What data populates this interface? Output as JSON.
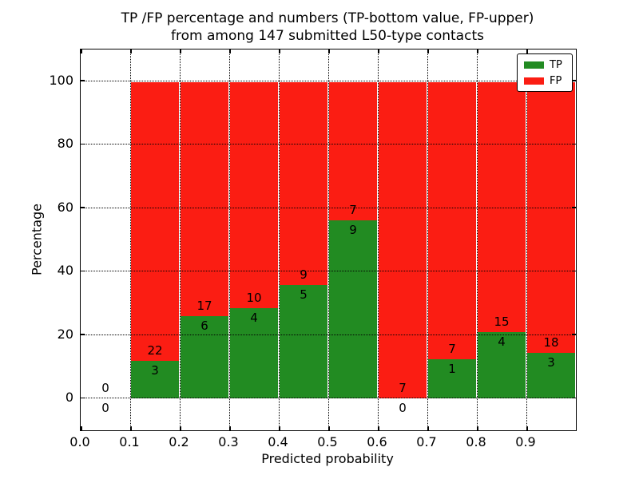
{
  "title": {
    "line1": "TP /FP percentage and numbers (TP-bottom value, FP-upper)",
    "line2": "from among 147 submitted L50-type contacts"
  },
  "chart_data": {
    "type": "bar",
    "stacked": true,
    "title": "TP /FP percentage and numbers (TP-bottom value, FP-upper) from among 147 submitted L50-type contacts",
    "xlabel": "Predicted probability",
    "ylabel": "Percentage",
    "xlim": [
      0.0,
      1.0
    ],
    "ylim": [
      -10,
      110
    ],
    "grid": true,
    "total_contacts": 147,
    "colors": {
      "tp": "#228b22",
      "fp": "#fb1d13"
    },
    "legend": [
      {
        "label": "TP",
        "color": "#228b22"
      },
      {
        "label": "FP",
        "color": "#fb1d13"
      }
    ],
    "legend_position": "upper right",
    "yticks": [
      {
        "value": 0,
        "label": "0"
      },
      {
        "value": 20,
        "label": "20"
      },
      {
        "value": 40,
        "label": "40"
      },
      {
        "value": 60,
        "label": "60"
      },
      {
        "value": 80,
        "label": "80"
      },
      {
        "value": 100,
        "label": "100"
      }
    ],
    "xticks": [
      {
        "value": 0.0,
        "label": "0.0"
      },
      {
        "value": 0.1,
        "label": "0.1"
      },
      {
        "value": 0.2,
        "label": "0.2"
      },
      {
        "value": 0.3,
        "label": "0.3"
      },
      {
        "value": 0.4,
        "label": "0.4"
      },
      {
        "value": 0.5,
        "label": "0.5"
      },
      {
        "value": 0.6,
        "label": "0.6"
      },
      {
        "value": 0.7,
        "label": "0.7"
      },
      {
        "value": 0.8,
        "label": "0.8"
      },
      {
        "value": 0.9,
        "label": "0.9"
      }
    ],
    "bins": [
      {
        "x0": 0.0,
        "x1": 0.1,
        "tp": 0,
        "fp": 0
      },
      {
        "x0": 0.1,
        "x1": 0.2,
        "tp": 3,
        "fp": 22
      },
      {
        "x0": 0.2,
        "x1": 0.3,
        "tp": 6,
        "fp": 17
      },
      {
        "x0": 0.3,
        "x1": 0.4,
        "tp": 4,
        "fp": 10
      },
      {
        "x0": 0.4,
        "x1": 0.5,
        "tp": 5,
        "fp": 9
      },
      {
        "x0": 0.5,
        "x1": 0.6,
        "tp": 9,
        "fp": 7
      },
      {
        "x0": 0.6,
        "x1": 0.7,
        "tp": 0,
        "fp": 7
      },
      {
        "x0": 0.7,
        "x1": 0.8,
        "tp": 1,
        "fp": 7
      },
      {
        "x0": 0.8,
        "x1": 0.9,
        "tp": 4,
        "fp": 15
      },
      {
        "x0": 0.9,
        "x1": 1.0,
        "tp": 3,
        "fp": 18
      }
    ]
  }
}
